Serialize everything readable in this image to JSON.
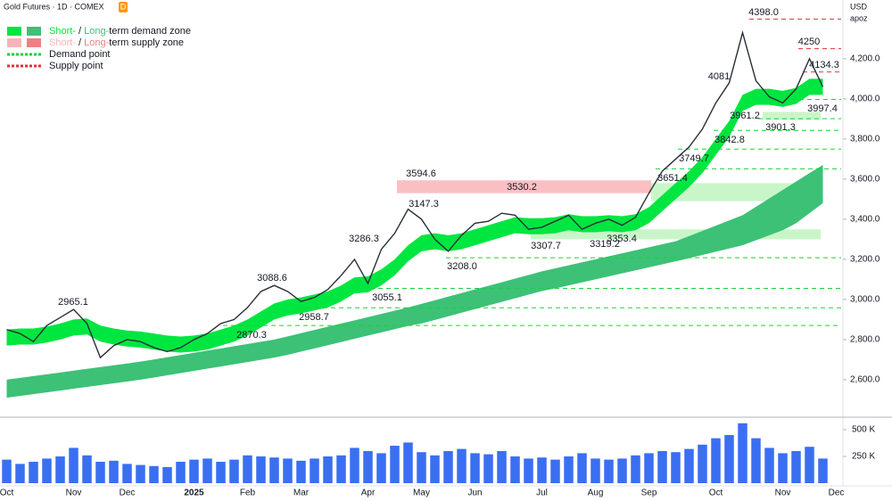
{
  "header": {
    "title": "Gold Futures · 1D · COMEX",
    "badge": "D",
    "currency": "USD",
    "scale_mode": "apoz"
  },
  "chart_data": [
    {
      "type": "line",
      "categories": [
        "Oct",
        null,
        null,
        null,
        null,
        "Nov",
        null,
        null,
        null,
        "Dec",
        null,
        null,
        null,
        null,
        "2025",
        null,
        null,
        null,
        "Feb",
        null,
        null,
        null,
        "Mar",
        null,
        null,
        null,
        null,
        "Apr",
        null,
        null,
        null,
        "May",
        null,
        null,
        null,
        "Jun",
        null,
        null,
        null,
        null,
        "Jul",
        null,
        null,
        null,
        "Aug",
        null,
        null,
        null,
        "Sep",
        null,
        null,
        null,
        null,
        "Oct",
        null,
        null,
        null,
        null,
        "Nov",
        null,
        null,
        null,
        "Dec"
      ],
      "series": [
        {
          "name": "Gold Futures",
          "color": "#2a2e39",
          "values": [
            2850,
            2830,
            2790,
            2870,
            2910,
            2950,
            2880,
            2710,
            2770,
            2800,
            2790,
            2760,
            2740,
            2760,
            2800,
            2830,
            2880,
            2900,
            2960,
            3040,
            3070,
            3040,
            2990,
            3010,
            3050,
            3120,
            3200,
            3080,
            3250,
            3330,
            3450,
            3400,
            3300,
            3240,
            3320,
            3380,
            3390,
            3430,
            3420,
            3350,
            3360,
            3390,
            3420,
            3350,
            3380,
            3400,
            3370,
            3410,
            3530,
            3640,
            3700,
            3760,
            3850,
            3980,
            4080,
            4330,
            4090,
            4010,
            3980,
            4050,
            4200,
            4060,
            null
          ]
        }
      ],
      "short_zone": {
        "color": "#00e640",
        "upper": [
          2850,
          2855,
          2855,
          2865,
          2880,
          2900,
          2905,
          2870,
          2855,
          2845,
          2840,
          2830,
          2820,
          2815,
          2820,
          2830,
          2850,
          2870,
          2900,
          2940,
          2980,
          3000,
          3010,
          3025,
          3040,
          3070,
          3110,
          3115,
          3150,
          3200,
          3270,
          3320,
          3330,
          3320,
          3330,
          3350,
          3370,
          3390,
          3410,
          3405,
          3405,
          3410,
          3425,
          3415,
          3415,
          3420,
          3415,
          3425,
          3460,
          3520,
          3580,
          3640,
          3710,
          3800,
          3890,
          4020,
          4050,
          4050,
          4040,
          4055,
          4100,
          4100,
          null
        ],
        "lower": [
          2770,
          2775,
          2775,
          2785,
          2800,
          2820,
          2825,
          2790,
          2775,
          2765,
          2760,
          2750,
          2740,
          2735,
          2740,
          2750,
          2770,
          2790,
          2820,
          2860,
          2900,
          2920,
          2930,
          2945,
          2960,
          2990,
          3030,
          3035,
          3070,
          3120,
          3190,
          3240,
          3250,
          3240,
          3250,
          3270,
          3290,
          3310,
          3330,
          3325,
          3325,
          3330,
          3345,
          3335,
          3335,
          3340,
          3335,
          3345,
          3380,
          3440,
          3500,
          3560,
          3630,
          3720,
          3810,
          3940,
          3970,
          3970,
          3960,
          3975,
          4020,
          4020,
          null
        ]
      },
      "long_zone": {
        "color": "#3cc177",
        "upper": [
          2600,
          2609,
          2618,
          2627,
          2636,
          2645,
          2654,
          2663,
          2672,
          2681,
          2690,
          2701,
          2712,
          2723,
          2734,
          2745,
          2756,
          2767,
          2778,
          2789,
          2800,
          2816,
          2832,
          2848,
          2864,
          2880,
          2896,
          2912,
          2928,
          2944,
          2960,
          2978,
          2996,
          3014,
          3032,
          3050,
          3068,
          3086,
          3104,
          3122,
          3140,
          3155,
          3170,
          3185,
          3200,
          3215,
          3230,
          3245,
          3260,
          3275,
          3290,
          3316,
          3342,
          3368,
          3394,
          3420,
          3462,
          3504,
          3546,
          3588,
          3630,
          3670,
          null
        ],
        "lower": [
          2510,
          2519,
          2528,
          2537,
          2546,
          2555,
          2564,
          2573,
          2582,
          2591,
          2600,
          2611,
          2622,
          2633,
          2644,
          2655,
          2666,
          2677,
          2688,
          2699,
          2710,
          2724,
          2740,
          2756,
          2772,
          2788,
          2804,
          2820,
          2836,
          2852,
          2868,
          2880,
          2898,
          2916,
          2934,
          2952,
          2970,
          2988,
          3006,
          3024,
          3042,
          3055,
          3070,
          3085,
          3100,
          3115,
          3130,
          3145,
          3160,
          3175,
          3190,
          3206,
          3222,
          3238,
          3254,
          3270,
          3295,
          3320,
          3345,
          3380,
          3430,
          3480,
          null
        ]
      },
      "zones": [
        {
          "kind": "supply",
          "low": 3530,
          "high": 3594,
          "color": "#f8b4b8"
        },
        {
          "kind": "demand",
          "low": 3490,
          "high": 3580,
          "color": "#bff5bf"
        },
        {
          "kind": "demand",
          "low": 3300,
          "high": 3350,
          "color": "#bff5bf"
        },
        {
          "kind": "demand",
          "low": 3895,
          "high": 3935,
          "color": "#bff5bf"
        }
      ],
      "levels": [
        {
          "value": 4398,
          "label": "4398.0",
          "kind": "supply"
        },
        {
          "value": 4250,
          "label": "4250",
          "kind": "supply"
        },
        {
          "value": 4134.3,
          "label": "4134.3",
          "kind": "supply"
        },
        {
          "value": 3997.4,
          "label": "3997.4",
          "kind": "demand"
        },
        {
          "value": 3901.3,
          "label": "3901.3",
          "kind": "demand"
        },
        {
          "value": 3842.8,
          "label": "3842.8",
          "kind": "demand"
        },
        {
          "value": 3749.7,
          "label": "3749.7",
          "kind": "demand"
        },
        {
          "value": 3651.4,
          "label": "3651.4",
          "kind": "demand"
        },
        {
          "value": 3208,
          "label": "3208.0",
          "kind": "demand"
        },
        {
          "value": 3055.1,
          "label": "3055.1",
          "kind": "demand"
        },
        {
          "value": 2958.7,
          "label": "2958.7",
          "kind": "demand"
        },
        {
          "value": 2870.3,
          "label": "2870.3",
          "kind": "demand"
        },
        {
          "value": 4081,
          "label": "4081",
          "kind": "point"
        },
        {
          "value": 3961.2,
          "label": "3961.2",
          "kind": "point"
        },
        {
          "value": 3594.6,
          "label": "3594.6",
          "kind": "point"
        },
        {
          "value": 3530.2,
          "label": "3530.2",
          "kind": "point"
        },
        {
          "value": 3147.3,
          "label": "3147.3",
          "kind": "point"
        },
        {
          "value": 3286.3,
          "label": "3286.3",
          "kind": "point"
        },
        {
          "value": 3088.6,
          "label": "3088.6",
          "kind": "point"
        },
        {
          "value": 2965.1,
          "label": "2965.1",
          "kind": "point"
        },
        {
          "value": 3307.7,
          "label": "3307.7",
          "kind": "point"
        },
        {
          "value": 3319.2,
          "label": "3319.2",
          "kind": "point"
        },
        {
          "value": 3353.4,
          "label": "3353.4",
          "kind": "point"
        }
      ],
      "legend": [
        {
          "parts": [
            "Short-",
            " / ",
            "Long-",
            "term demand zone"
          ],
          "colors": [
            "#00e640",
            "#3cc177"
          ]
        },
        {
          "parts": [
            "Short-",
            " / ",
            "Long-",
            "term supply zone"
          ],
          "colors": [
            "#f8b4b8",
            "#f07f85"
          ]
        },
        {
          "parts": [
            "Demand point"
          ],
          "colors": [
            "#1fcf3a"
          ]
        },
        {
          "parts": [
            "Supply point"
          ],
          "colors": [
            "#e0303a"
          ]
        }
      ],
      "ylim": [
        2413,
        4493
      ],
      "yticks": [
        {
          "value": 2600,
          "label": "2,600.0"
        },
        {
          "value": 2800,
          "label": "2,800.0"
        },
        {
          "value": 3000,
          "label": "3,000.0"
        },
        {
          "value": 3200,
          "label": "3,200.0"
        },
        {
          "value": 3400,
          "label": "3,400.0"
        },
        {
          "value": 3600,
          "label": "3,600.0"
        },
        {
          "value": 3800,
          "label": "3,800.0"
        },
        {
          "value": 4000,
          "label": "4,000.0"
        },
        {
          "value": 4200,
          "label": "4,200.0"
        }
      ]
    },
    {
      "type": "bar",
      "color": "#3a6ff2",
      "values": [
        220000,
        180000,
        200000,
        230000,
        250000,
        330000,
        260000,
        200000,
        210000,
        180000,
        170000,
        160000,
        150000,
        200000,
        220000,
        230000,
        200000,
        220000,
        260000,
        250000,
        240000,
        230000,
        210000,
        230000,
        250000,
        260000,
        330000,
        300000,
        280000,
        350000,
        380000,
        290000,
        260000,
        300000,
        320000,
        280000,
        270000,
        300000,
        250000,
        230000,
        240000,
        220000,
        250000,
        280000,
        230000,
        220000,
        230000,
        260000,
        280000,
        300000,
        290000,
        320000,
        360000,
        420000,
        450000,
        560000,
        420000,
        330000,
        280000,
        300000,
        340000,
        230000,
        null
      ],
      "ylim": [
        0,
        600000
      ],
      "yticks": [
        {
          "value": 250000,
          "label": "250 K"
        },
        {
          "value": 500000,
          "label": "500 K"
        }
      ]
    }
  ]
}
